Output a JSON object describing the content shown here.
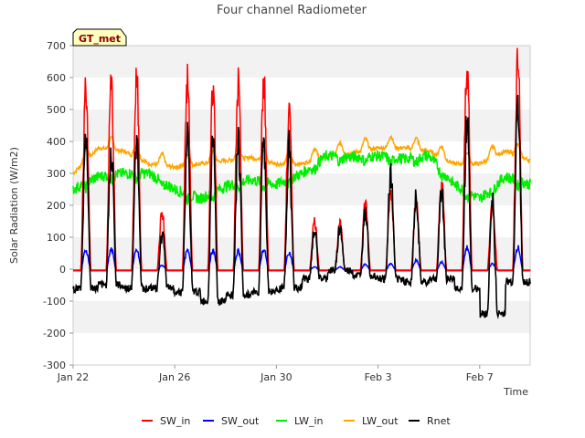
{
  "chart_data": {
    "type": "line",
    "title": "Four channel Radiometer",
    "xlabel": "Time",
    "ylabel": "Solar Radiation (W/m2)",
    "ylim": [
      -300,
      700
    ],
    "xlim": [
      0,
      18
    ],
    "yticks": [
      -300,
      -200,
      -100,
      0,
      100,
      200,
      300,
      400,
      500,
      600,
      700
    ],
    "xticks": [
      {
        "label": "Jan 22",
        "day": 0
      },
      {
        "label": "Jan 26",
        "day": 4
      },
      {
        "label": "Jan 30",
        "day": 8
      },
      {
        "label": "Feb 3",
        "day": 12
      },
      {
        "label": "Feb 7",
        "day": 16
      }
    ],
    "badge": "GT_met",
    "grid": "horizontal bands",
    "legend_position": "bottom",
    "day_offset": 0.5,
    "series": [
      {
        "name": "SW_in",
        "color": "#ff0000",
        "baseline": -5,
        "peaks": [
          575,
          580,
          590,
          180,
          590,
          590,
          585,
          600,
          490,
          155,
          145,
          215,
          250,
          215,
          275,
          650,
          210,
          680
        ]
      },
      {
        "name": "SW_out",
        "color": "#0000ff",
        "baseline": -3,
        "peaks": [
          62,
          65,
          62,
          15,
          60,
          60,
          60,
          65,
          55,
          10,
          10,
          18,
          20,
          30,
          25,
          70,
          20,
          72
        ]
      },
      {
        "name": "LW_in",
        "color": "#00ee00",
        "levels": [
          250,
          290,
          300,
          300,
          250,
          220,
          260,
          280,
          265,
          300,
          355,
          350,
          355,
          345,
          355,
          265,
          220,
          290,
          265
        ]
      },
      {
        "name": "LW_out",
        "color": "#ffa500",
        "levels": [
          300,
          380,
          370,
          330,
          320,
          330,
          340,
          350,
          330,
          330,
          355,
          365,
          380,
          380,
          370,
          330,
          330,
          370,
          340
        ]
      },
      {
        "name": "Rnet",
        "color": "#000000",
        "night": [
          -60,
          -50,
          -60,
          -60,
          -70,
          -100,
          -80,
          -70,
          -60,
          -30,
          -5,
          -20,
          -30,
          -40,
          -30,
          -60,
          -140,
          -40,
          -80
        ],
        "peaks": [
          390,
          380,
          420,
          120,
          400,
          400,
          405,
          400,
          370,
          120,
          130,
          190,
          300,
          215,
          240,
          450,
          200,
          490
        ]
      }
    ]
  }
}
